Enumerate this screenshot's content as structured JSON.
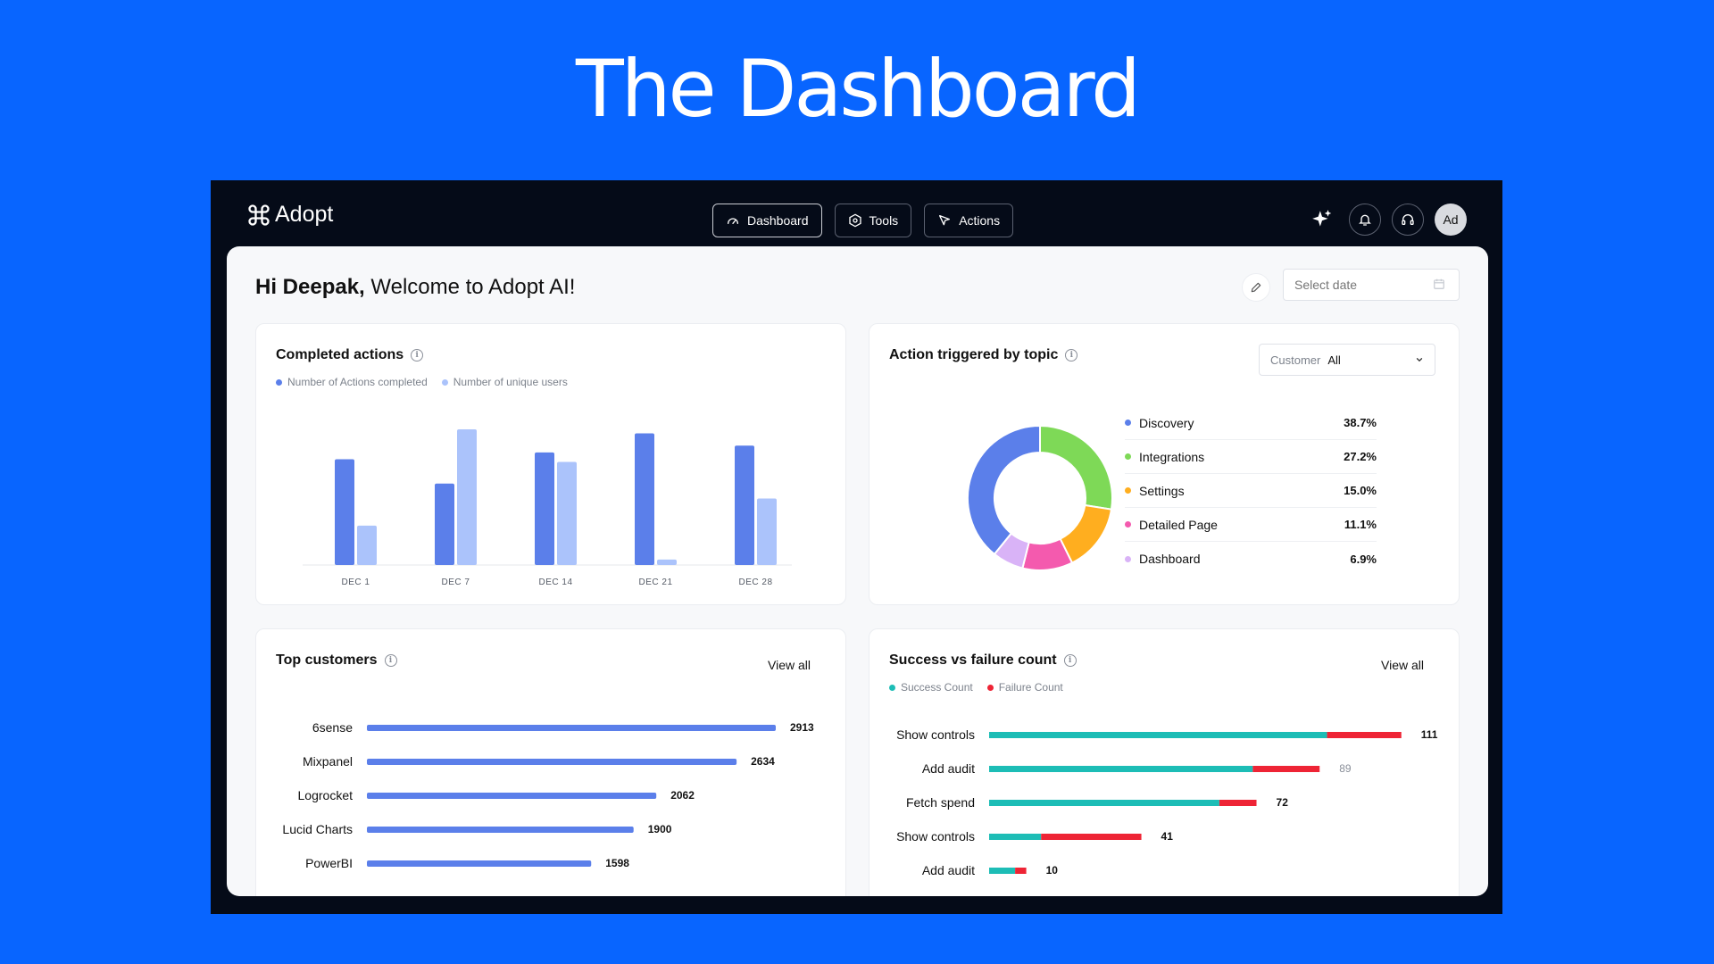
{
  "hero": {
    "title": "The Dashboard"
  },
  "app": {
    "brand": "Adopt"
  },
  "nav": [
    {
      "label": "Dashboard",
      "icon": "gauge-icon",
      "active": true
    },
    {
      "label": "Tools",
      "icon": "hexagon-icon",
      "active": false
    },
    {
      "label": "Actions",
      "icon": "cursor-icon",
      "active": false
    }
  ],
  "user": {
    "initials": "Ad",
    "name": "Hi Deepak,",
    "welcome": " Welcome to Adopt AI!"
  },
  "date_picker": {
    "placeholder": "Select date"
  },
  "completed_actions": {
    "title": "Completed actions",
    "chart_data": {
      "type": "bar",
      "categories": [
        "DEC 1",
        "DEC 7",
        "DEC 14",
        "DEC 21",
        "DEC 28"
      ],
      "series": [
        {
          "name": "Number of Actions completed",
          "color": "#5B7FEA",
          "values": [
            78,
            60,
            83,
            97,
            88
          ]
        },
        {
          "name": "Number of unique users",
          "color": "#ABC3FB",
          "values": [
            29,
            100,
            76,
            4,
            49
          ]
        }
      ],
      "ylim": [
        0,
        100
      ]
    }
  },
  "topics": {
    "title": "Action triggered by topic",
    "filter": {
      "label": "Customer",
      "value": "All"
    },
    "chart_data": {
      "type": "pie",
      "items": [
        {
          "name": "Discovery",
          "value": 38.7,
          "display": "38.7%",
          "color": "#5B7FEA"
        },
        {
          "name": "Integrations",
          "value": 27.2,
          "display": "27.2%",
          "color": "#7ED957"
        },
        {
          "name": "Settings",
          "value": 15.0,
          "display": "15.0%",
          "color": "#FFAE1F"
        },
        {
          "name": "Detailed Page",
          "value": 11.1,
          "display": "11.1%",
          "color": "#F45AAE"
        },
        {
          "name": "Dashboard",
          "value": 6.9,
          "display": "6.9%",
          "color": "#D9B3F7"
        }
      ]
    }
  },
  "top_customers": {
    "title": "Top customers",
    "view_all": "View all",
    "chart_data": {
      "type": "bar",
      "orientation": "horizontal",
      "color": "#5B7FEA",
      "items": [
        {
          "name": "6sense",
          "value": 2913
        },
        {
          "name": "Mixpanel",
          "value": 2634
        },
        {
          "name": "Logrocket",
          "value": 2062
        },
        {
          "name": "Lucid Charts",
          "value": 1900
        },
        {
          "name": "PowerBI",
          "value": 1598
        }
      ]
    }
  },
  "success_failure": {
    "title": "Success vs failure count",
    "view_all": "View all",
    "legend": [
      {
        "name": "Success Count",
        "color": "#1DBDB6"
      },
      {
        "name": "Failure Count",
        "color": "#EE2435"
      }
    ],
    "chart_data": {
      "type": "bar",
      "orientation": "horizontal",
      "stacked": true,
      "items": [
        {
          "name": "Show controls",
          "success": 91,
          "failure": 20,
          "total": "111"
        },
        {
          "name": "Add audit",
          "success": 71,
          "failure": 18,
          "total": "89"
        },
        {
          "name": "Fetch spend",
          "success": 62,
          "failure": 10,
          "total": "72"
        },
        {
          "name": "Show controls",
          "success": 14,
          "failure": 27,
          "total": "41"
        },
        {
          "name": "Add audit",
          "success": 7,
          "failure": 3,
          "total": "10"
        }
      ]
    }
  }
}
